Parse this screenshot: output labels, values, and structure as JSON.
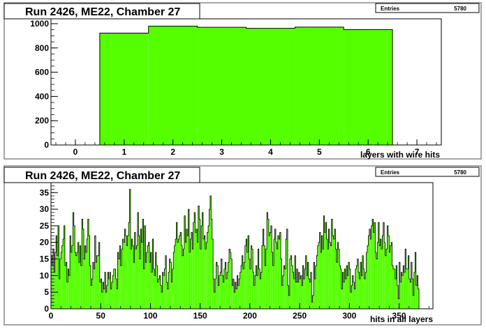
{
  "chart_data": [
    {
      "type": "bar",
      "title": "Run 2426, ME22, Chamber 27",
      "xlabel": "layers with wire hits",
      "ylabel": "",
      "xlim": [
        -0.5,
        7.5
      ],
      "ylim": [
        0,
        1040
      ],
      "x_ticks": [
        0,
        1,
        2,
        3,
        4,
        5,
        6,
        7
      ],
      "y_ticks": [
        0,
        200,
        400,
        600,
        800,
        1000
      ],
      "stats": {
        "label": "Entries",
        "value": "5780"
      },
      "grid": false,
      "legend": "none",
      "fill_color": "#55ff00",
      "bins": [
        {
          "x": 1,
          "value": 922
        },
        {
          "x": 2,
          "value": 980
        },
        {
          "x": 3,
          "value": 970
        },
        {
          "x": 4,
          "value": 962
        },
        {
          "x": 5,
          "value": 972
        },
        {
          "x": 6,
          "value": 952
        }
      ]
    },
    {
      "type": "bar",
      "title": "Run 2426, ME22, Chamber 27",
      "xlabel": "hits in all layers",
      "ylabel": "",
      "xlim": [
        0,
        384
      ],
      "ylim": [
        0,
        38
      ],
      "x_ticks": [
        0,
        50,
        100,
        150,
        200,
        250,
        300,
        350
      ],
      "y_ticks": [
        0,
        5,
        10,
        15,
        20,
        25,
        30,
        35
      ],
      "stats": {
        "label": "Entries",
        "value": "5780"
      },
      "grid": false,
      "legend": "none",
      "fill_color": "#55ff00",
      "bin_width": 1,
      "values": [
        16,
        13,
        18,
        11,
        17,
        22,
        16,
        25,
        9,
        15,
        17,
        19,
        21,
        25,
        13,
        14,
        8,
        12,
        10,
        22,
        17,
        19,
        29,
        25,
        17,
        16,
        17,
        20,
        14,
        19,
        13,
        27,
        24,
        15,
        19,
        17,
        21,
        27,
        22,
        13,
        7,
        9,
        14,
        12,
        22,
        14,
        16,
        16,
        20,
        8,
        9,
        5,
        8,
        6,
        11,
        5,
        7,
        11,
        9,
        11,
        6,
        8,
        10,
        12,
        12,
        9,
        6,
        17,
        15,
        19,
        13,
        18,
        21,
        20,
        24,
        22,
        19,
        22,
        26,
        36,
        18,
        21,
        19,
        14,
        23,
        18,
        19,
        29,
        22,
        15,
        24,
        20,
        27,
        12,
        25,
        14,
        17,
        19,
        20,
        14,
        17,
        11,
        21,
        12,
        10,
        17,
        13,
        8,
        9,
        10,
        7,
        5,
        11,
        10,
        12,
        16,
        8,
        6,
        11,
        15,
        14,
        8,
        12,
        17,
        19,
        21,
        26,
        20,
        21,
        22,
        23,
        19,
        16,
        18,
        28,
        20,
        24,
        22,
        30,
        17,
        21,
        23,
        18,
        26,
        29,
        23,
        24,
        20,
        31,
        27,
        18,
        25,
        29,
        21,
        22,
        18,
        20,
        23,
        25,
        30,
        34,
        27,
        21,
        9,
        5,
        9,
        14,
        13,
        7,
        10,
        11,
        15,
        10,
        8,
        12,
        14,
        9,
        11,
        14,
        18,
        17,
        15,
        7,
        9,
        5,
        8,
        6,
        10,
        7,
        9,
        11,
        13,
        16,
        12,
        14,
        19,
        21,
        17,
        22,
        15,
        12,
        19,
        18,
        11,
        7,
        10,
        13,
        10,
        18,
        12,
        9,
        11,
        19,
        24,
        19,
        13,
        18,
        29,
        27,
        22,
        23,
        25,
        17,
        13,
        21,
        24,
        20,
        18,
        22,
        21,
        23,
        15,
        7,
        10,
        13,
        12,
        21,
        24,
        7,
        4,
        15,
        16,
        13,
        11,
        9,
        16,
        8,
        12,
        8,
        11,
        9,
        10,
        7,
        13,
        9,
        12,
        16,
        10,
        14,
        9,
        8,
        11,
        2,
        4,
        14,
        9,
        13,
        16,
        19,
        20,
        23,
        17,
        22,
        18,
        28,
        23,
        26,
        21,
        18,
        24,
        20,
        19,
        27,
        22,
        21,
        24,
        18,
        14,
        20,
        18,
        13,
        12,
        6,
        11,
        8,
        12,
        9,
        13,
        10,
        14,
        12,
        5,
        7,
        10,
        8,
        6,
        12,
        13,
        15,
        11,
        9,
        14,
        10,
        16,
        12,
        9,
        11,
        17,
        19,
        22,
        24,
        21,
        25,
        27,
        23,
        26,
        17,
        15,
        20,
        26,
        19,
        21,
        18,
        22,
        26,
        20,
        16,
        18,
        25,
        22,
        17,
        19,
        20,
        13,
        12,
        12,
        9,
        13,
        7,
        3,
        14,
        8,
        11,
        10,
        13,
        11,
        18,
        12,
        12,
        16,
        9,
        8,
        14,
        9,
        4,
        11,
        17,
        7,
        10,
        6
      ]
    }
  ]
}
